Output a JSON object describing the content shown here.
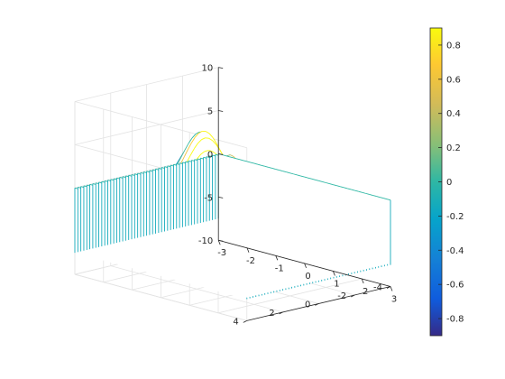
{
  "chart_data": {
    "type": "waterfall-3d",
    "description_function": "peaks",
    "x": {
      "range": [
        -3,
        3
      ],
      "ticks": [
        "-3",
        "-2",
        "-1",
        "0",
        "1",
        "2",
        "3"
      ]
    },
    "y": {
      "range": [
        -4,
        4
      ],
      "ticks": [
        "-4",
        "-2",
        "0",
        "2",
        "4"
      ]
    },
    "z": {
      "range": [
        -10,
        10
      ],
      "ticks": [
        "-10",
        "-5",
        "0",
        "5",
        "10"
      ]
    },
    "colorbar": {
      "range": [
        -0.9,
        0.9
      ],
      "ticks": [
        "0.8",
        "0.6",
        "0.4",
        "0.2",
        "0",
        "-0.2",
        "-0.4",
        "-0.6",
        "-0.8"
      ],
      "colormap": "parula"
    },
    "grid": true,
    "legend": "none"
  },
  "colors": {
    "axis": "#262626",
    "grid": "#e3e3e3"
  }
}
